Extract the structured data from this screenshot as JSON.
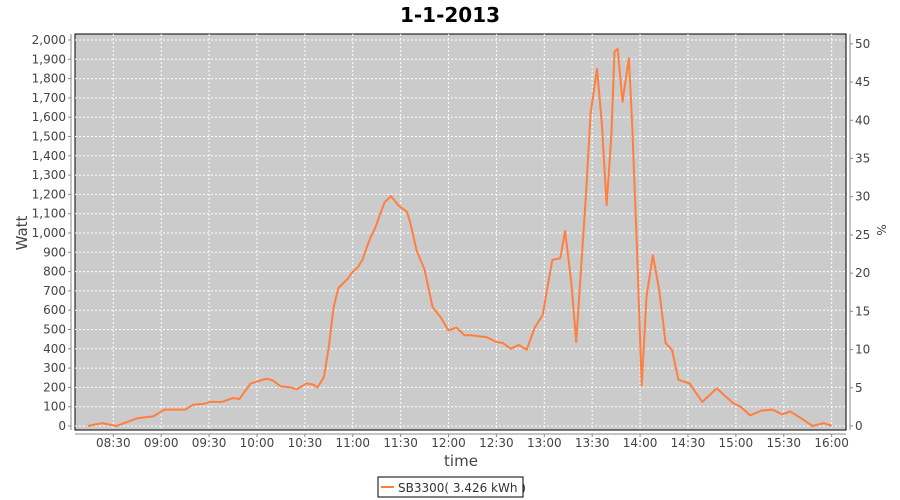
{
  "chart_data": {
    "type": "line",
    "title": "1-1-2013",
    "xlabel": "time",
    "ylabel": "Watt",
    "y2label": "%",
    "xlim": [
      "08:06",
      "16:09"
    ],
    "ylim": [
      0,
      2000
    ],
    "y2lim": [
      0,
      50.5
    ],
    "x_ticks": [
      "08:30",
      "09:00",
      "09:30",
      "10:00",
      "10:30",
      "11:00",
      "11:30",
      "12:00",
      "12:30",
      "13:00",
      "13:30",
      "14:00",
      "14:30",
      "15:00",
      "15:30",
      "16:00"
    ],
    "y_ticks": [
      "0",
      "100",
      "200",
      "300",
      "400",
      "500",
      "600",
      "700",
      "800",
      "900",
      "1,000",
      "1,100",
      "1,200",
      "1,300",
      "1,400",
      "1,500",
      "1,600",
      "1,700",
      "1,800",
      "1,900",
      "2,000"
    ],
    "y2_ticks": [
      "0",
      "5",
      "10",
      "15",
      "20",
      "25",
      "30",
      "35",
      "40",
      "45",
      "50"
    ],
    "grid": true,
    "legend_position": "bottom",
    "plot_background": "#cbcbcb",
    "series": [
      {
        "name": "SB3300( 3.426 kWh )",
        "color": "#ff7f3f",
        "points": [
          [
            "08:14",
            0
          ],
          [
            "08:23",
            15
          ],
          [
            "08:32",
            0
          ],
          [
            "08:45",
            40
          ],
          [
            "08:55",
            50
          ],
          [
            "09:02",
            85
          ],
          [
            "09:15",
            85
          ],
          [
            "09:20",
            110
          ],
          [
            "09:27",
            115
          ],
          [
            "09:31",
            125
          ],
          [
            "09:38",
            125
          ],
          [
            "09:45",
            145
          ],
          [
            "09:49",
            140
          ],
          [
            "09:56",
            220
          ],
          [
            "10:00",
            230
          ],
          [
            "10:06",
            245
          ],
          [
            "10:10",
            235
          ],
          [
            "10:15",
            205
          ],
          [
            "10:21",
            200
          ],
          [
            "10:25",
            190
          ],
          [
            "10:31",
            220
          ],
          [
            "10:35",
            215
          ],
          [
            "10:38",
            200
          ],
          [
            "10:42",
            255
          ],
          [
            "10:45",
            410
          ],
          [
            "10:48",
            615
          ],
          [
            "10:51",
            715
          ],
          [
            "10:57",
            765
          ],
          [
            "11:00",
            800
          ],
          [
            "11:03",
            820
          ],
          [
            "11:06",
            860
          ],
          [
            "11:11",
            975
          ],
          [
            "11:14",
            1025
          ],
          [
            "11:17",
            1095
          ],
          [
            "11:20",
            1160
          ],
          [
            "11:24",
            1190
          ],
          [
            "11:26",
            1170
          ],
          [
            "11:29",
            1140
          ],
          [
            "11:34",
            1110
          ],
          [
            "11:36",
            1055
          ],
          [
            "11:40",
            910
          ],
          [
            "11:45",
            810
          ],
          [
            "11:50",
            615
          ],
          [
            "11:55",
            565
          ],
          [
            "12:00",
            495
          ],
          [
            "12:05",
            510
          ],
          [
            "12:10",
            470
          ],
          [
            "12:14",
            470
          ],
          [
            "12:24",
            460
          ],
          [
            "12:30",
            435
          ],
          [
            "12:34",
            430
          ],
          [
            "12:39",
            400
          ],
          [
            "12:44",
            420
          ],
          [
            "12:49",
            395
          ],
          [
            "12:54",
            510
          ],
          [
            "12:59",
            575
          ],
          [
            "13:02",
            720
          ],
          [
            "13:05",
            860
          ],
          [
            "13:10",
            870
          ],
          [
            "13:13",
            1010
          ],
          [
            "13:17",
            740
          ],
          [
            "13:20",
            435
          ],
          [
            "13:23",
            810
          ],
          [
            "13:26",
            1185
          ],
          [
            "13:29",
            1620
          ],
          [
            "13:33",
            1850
          ],
          [
            "13:36",
            1570
          ],
          [
            "13:39",
            1145
          ],
          [
            "13:42",
            1500
          ],
          [
            "13:44",
            1940
          ],
          [
            "13:46",
            1955
          ],
          [
            "13:49",
            1680
          ],
          [
            "13:53",
            1905
          ],
          [
            "13:55",
            1570
          ],
          [
            "13:58",
            930
          ],
          [
            "14:01",
            210
          ],
          [
            "14:04",
            670
          ],
          [
            "14:08",
            885
          ],
          [
            "14:12",
            705
          ],
          [
            "14:16",
            430
          ],
          [
            "14:20",
            395
          ],
          [
            "14:24",
            240
          ],
          [
            "14:31",
            220
          ],
          [
            "14:39",
            125
          ],
          [
            "14:48",
            195
          ],
          [
            "14:58",
            120
          ],
          [
            "15:03",
            100
          ],
          [
            "15:09",
            55
          ],
          [
            "15:16",
            80
          ],
          [
            "15:23",
            85
          ],
          [
            "15:29",
            60
          ],
          [
            "15:34",
            75
          ],
          [
            "15:41",
            40
          ],
          [
            "15:48",
            0
          ],
          [
            "15:55",
            15
          ],
          [
            "16:00",
            0
          ]
        ]
      }
    ]
  }
}
